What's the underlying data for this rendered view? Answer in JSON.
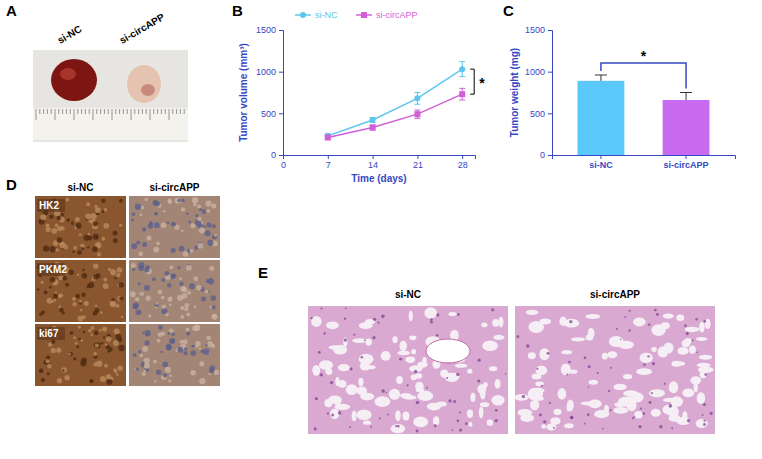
{
  "chart_data": [
    {
      "panel": "B",
      "type": "line",
      "x": [
        7,
        14,
        21,
        28
      ],
      "xlim": [
        0,
        30
      ],
      "xticks": [
        0,
        7,
        14,
        21,
        28
      ],
      "ylim": [
        0,
        1500
      ],
      "yticks": [
        0,
        500,
        1000,
        1500
      ],
      "x_label": "Time (days)",
      "y_label": "Tumor volume (mm³)",
      "legend": "top",
      "series": [
        {
          "name": "si-NC",
          "color": "#5cc6ee",
          "marker": "circle",
          "values": [
            230,
            420,
            680,
            1030
          ],
          "errors": [
            25,
            30,
            70,
            90
          ]
        },
        {
          "name": "si-circAPP",
          "color": "#d05fd8",
          "marker": "square",
          "values": [
            210,
            330,
            490,
            730
          ],
          "errors": [
            20,
            30,
            50,
            70
          ]
        }
      ],
      "annotations": [
        "*"
      ]
    },
    {
      "panel": "C",
      "type": "bar",
      "categories": [
        "si-NC",
        "si-circAPP"
      ],
      "values": [
        890,
        660
      ],
      "errors": [
        70,
        90
      ],
      "colors": [
        "#5bc8fa",
        "#c86af0"
      ],
      "ylim": [
        0,
        1500
      ],
      "yticks": [
        0,
        500,
        1000,
        1500
      ],
      "y_label": "Tumor weight (mg)",
      "annotations": [
        "*"
      ]
    }
  ],
  "images": [
    {
      "panel": "A",
      "labels": [
        "si-NC",
        "si-circAPP"
      ]
    },
    {
      "panel": "D",
      "columns": [
        "si-NC",
        "si-circAPP"
      ],
      "rows": [
        "HK2",
        "PKM2",
        "ki67"
      ]
    },
    {
      "panel": "E",
      "columns": [
        "si-NC",
        "si-circAPP"
      ]
    }
  ]
}
